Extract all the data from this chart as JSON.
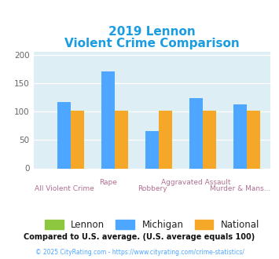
{
  "title_line1": "2019 Lennon",
  "title_line2": "Violent Crime Comparison",
  "categories": [
    "All Violent Crime",
    "Rape",
    "Robbery",
    "Aggravated Assault",
    "Murder & Mans..."
  ],
  "lennon": [
    0,
    0,
    0,
    0,
    0
  ],
  "michigan": [
    116,
    170,
    65,
    123,
    112
  ],
  "national": [
    101,
    101,
    101,
    101,
    101
  ],
  "lennon_color": "#8dc63f",
  "michigan_color": "#4da6ff",
  "national_color": "#f5a827",
  "ylim": [
    0,
    205
  ],
  "yticks": [
    0,
    50,
    100,
    150,
    200
  ],
  "bg_color": "#ddeef5",
  "title_color": "#1a9de0",
  "x_label_color_even": "#b07090",
  "x_label_color_odd": "#b07090",
  "legend_text_color": "#222222",
  "footer_text1": "Compared to U.S. average. (U.S. average equals 100)",
  "footer_text2": "© 2025 CityRating.com - https://www.cityrating.com/crime-statistics/",
  "legend_labels": [
    "Lennon",
    "Michigan",
    "National"
  ]
}
